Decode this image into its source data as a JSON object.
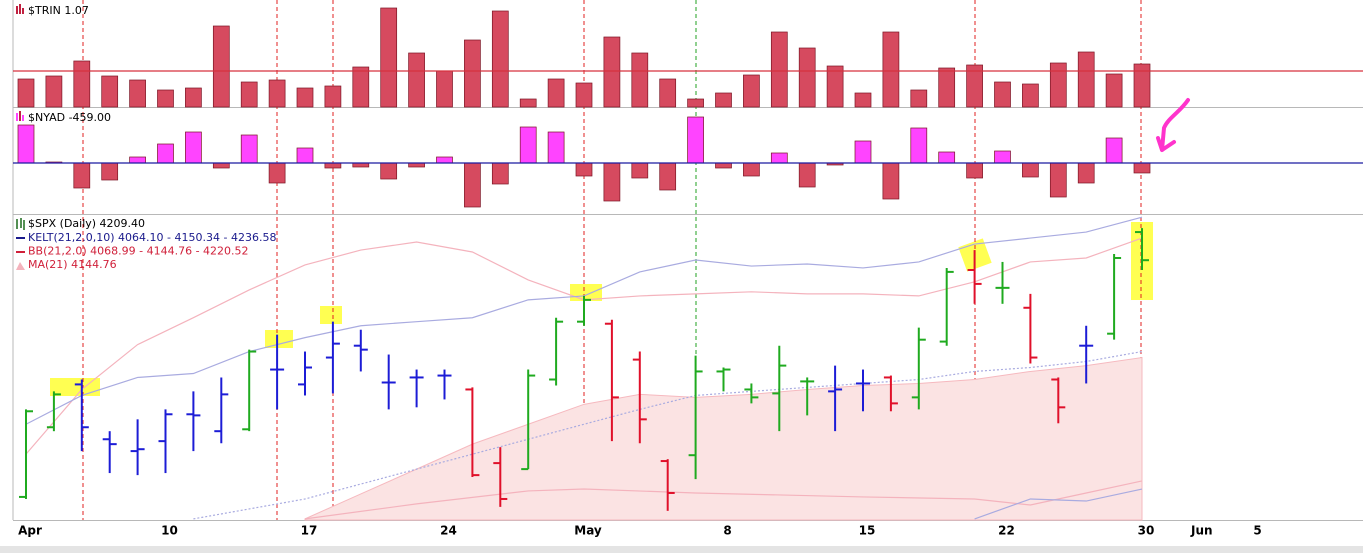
{
  "chart_data": [
    {
      "type": "bar",
      "title": "$TRIN 1.07",
      "color": "#d64a5f",
      "edge": "#7a1424",
      "values": [
        0.92,
        0.95,
        1.1,
        0.95,
        0.91,
        0.81,
        0.83,
        1.45,
        0.89,
        0.91,
        0.83,
        0.85,
        1.04,
        1.63,
        1.18,
        1.0,
        1.31,
        1.6,
        0.72,
        0.92,
        0.88,
        1.34,
        1.18,
        0.92,
        0.72,
        0.78,
        0.96,
        1.39,
        1.23,
        1.05,
        0.78,
        1.39,
        0.81,
        1.03,
        1.06,
        0.89,
        0.87,
        1.08,
        1.19,
        0.97,
        1.07
      ],
      "ylim": [
        0.64,
        1.71
      ],
      "ref_line": {
        "value": 1.0,
        "color": "#d6303f"
      }
    },
    {
      "type": "bar",
      "title": "$NYAD -459.00",
      "color_up": "#ff44ff",
      "color_down": "#d64a5f",
      "edge": "#7a1424",
      "values": [
        1748,
        46,
        -1150,
        -782,
        276,
        874,
        1426,
        -230,
        1288,
        -920,
        690,
        -230,
        -184,
        -736,
        -184,
        276,
        -2024,
        -966,
        1656,
        1426,
        -598,
        -1748,
        -690,
        -1242,
        2116,
        -230,
        -598,
        460,
        -1104,
        -92,
        1012,
        -1656,
        1610,
        506,
        -690,
        552,
        -644,
        -1564,
        -920,
        1150,
        -459
      ],
      "ylim": [
        -2300,
        2530
      ],
      "ref_line": {
        "value": 0,
        "color": "#1a1aa0"
      }
    },
    {
      "type": "ohlc",
      "title": "$SPX (Daily) 4209.40",
      "legend": [
        {
          "text": "KELT(21,2.0,10) 4064.10 - 4150.34 - 4236.58",
          "color": "#1a1a8c"
        },
        {
          "text": "BB(21,2.0) 4068.99 - 4144.76 - 4220.52",
          "color": "#d0203a"
        },
        {
          "text": "MA(21) 4144.76",
          "color": "#d0203a"
        }
      ],
      "categories": [
        "Apr",
        null,
        null,
        null,
        null,
        "10",
        null,
        null,
        null,
        null,
        "17",
        null,
        null,
        null,
        null,
        "24",
        null,
        null,
        null,
        null,
        "May",
        null,
        null,
        null,
        null,
        "8",
        null,
        null,
        null,
        null,
        "15",
        null,
        null,
        null,
        null,
        "22",
        null,
        null,
        null,
        null,
        "30",
        null,
        "Jun",
        null,
        "5"
      ],
      "open": [
        4059.6,
        4103.7,
        4130.8,
        4096.1,
        4088.6,
        4094.9,
        4111.9,
        4101.2,
        4102.4,
        4140.2,
        4130.8,
        4147.8,
        4155.3,
        4132.0,
        4135.2,
        4136.4,
        4127.6,
        4081.0,
        4077.2,
        4133.9,
        4170.5,
        4169.2,
        4146.5,
        4082.3,
        4086.0,
        4139.0,
        4127.6,
        4125.1,
        4132.7,
        4126.4,
        4131.4,
        4135.2,
        4122.6,
        4157.9,
        4203.2,
        4191.9,
        4179.3,
        4133.9,
        4155.3,
        4162.9,
        4227.2,
        null,
        null,
        null,
        null
      ],
      "high": [
        4115.0,
        4126.4,
        4133.9,
        4101.2,
        4108.7,
        4115.0,
        4126.4,
        4135.2,
        4152.8,
        4162.3,
        4151.6,
        4170.5,
        4165.4,
        4149.7,
        4140.2,
        4140.2,
        4128.9,
        4091.1,
        4140.2,
        4173.0,
        4186.8,
        4171.7,
        4151.6,
        4083.5,
        4149.0,
        4141.5,
        4131.4,
        4155.3,
        4135.2,
        4142.7,
        4140.2,
        4136.4,
        4166.7,
        4204.5,
        4215.8,
        4208.3,
        4188.1,
        4135.2,
        4167.9,
        4213.3,
        4229.7,
        null,
        null,
        null,
        null
      ],
      "low": [
        4058.3,
        4101.2,
        4088.6,
        4074.7,
        4073.4,
        4074.7,
        4088.6,
        4093.6,
        4101.2,
        4115.0,
        4123.8,
        4125.1,
        4139.0,
        4115.0,
        4116.3,
        4121.3,
        4072.2,
        4053.3,
        4077.2,
        4130.1,
        4167.9,
        4094.9,
        4093.6,
        4050.8,
        4070.9,
        4126.4,
        4118.8,
        4101.2,
        4111.2,
        4101.2,
        4113.8,
        4113.8,
        4115.0,
        4155.3,
        4181.8,
        4181.8,
        4144.0,
        4106.2,
        4131.4,
        4159.1,
        4203.2,
        null,
        null,
        null,
        null
      ],
      "close": [
        4113.8,
        4124.5,
        4103.7,
        4093.0,
        4089.8,
        4111.9,
        4111.2,
        4124.5,
        4151.6,
        4140.2,
        4141.5,
        4156.6,
        4152.8,
        4132.0,
        4135.2,
        4136.4,
        4073.4,
        4058.3,
        4136.4,
        4170.5,
        4184.3,
        4122.6,
        4108.7,
        4062.1,
        4139.0,
        4140.2,
        4122.6,
        4142.7,
        4132.7,
        4127.6,
        4131.4,
        4118.8,
        4159.1,
        4202.0,
        4194.4,
        4191.9,
        4147.8,
        4116.3,
        4155.3,
        4210.8,
        4209.4,
        null,
        null,
        null,
        null
      ],
      "colors": [
        "#1faa1f",
        "#1faa1f",
        "#1c1cd6",
        "#1c1cd6",
        "#1c1cd6",
        "#1c1cd6",
        "#1c1cd6",
        "#1c1cd6",
        "#1faa1f",
        "#1c1cd6",
        "#1c1cd6",
        "#1c1cd6",
        "#1c1cd6",
        "#1c1cd6",
        "#1c1cd6",
        "#1c1cd6",
        "#e0102a",
        "#e0102a",
        "#1faa1f",
        "#1faa1f",
        "#1faa1f",
        "#e0102a",
        "#e0102a",
        "#e0102a",
        "#1faa1f",
        "#1faa1f",
        "#1faa1f",
        "#1faa1f",
        "#1faa1f",
        "#1c1cd6",
        "#1c1cd6",
        "#e0102a",
        "#1faa1f",
        "#1faa1f",
        "#e0102a",
        "#1faa1f",
        "#e0102a",
        "#e0102a",
        "#1c1cd6",
        "#1faa1f",
        "#1faa1f",
        null,
        null,
        null,
        null
      ],
      "ylim": [
        4045,
        4238
      ],
      "overlays": [
        {
          "style": "area",
          "color": "#f6b9bf",
          "fill": "#fbe3e3",
          "x": [
            10,
            12,
            14,
            16,
            18,
            20,
            22,
            24,
            26,
            28,
            30,
            32,
            34,
            36,
            38,
            40
          ],
          "values": [
            4045.7,
            4061.5,
            4077.2,
            4093.0,
            4105.6,
            4118.2,
            4124.5,
            4122.6,
            4124.5,
            4127.6,
            4130.1,
            4131.4,
            4133.9,
            4139.0,
            4142.7,
            4147.8
          ]
        },
        {
          "style": "line",
          "color": "#f4b3bd",
          "x": [
            0,
            2,
            4,
            6,
            8,
            10,
            12,
            14,
            16,
            18,
            20,
            22,
            24,
            26,
            28,
            30,
            32,
            34,
            36,
            38,
            40
          ],
          "values": [
            4086.7,
            4127.6,
            4156.0,
            4173.0,
            4190.6,
            4206.4,
            4215.8,
            4220.9,
            4214.6,
            4196.9,
            4184.3,
            4186.8,
            4188.1,
            4189.4,
            4188.1,
            4188.1,
            4186.8,
            4195.7,
            4208.3,
            4210.8,
            4223.4
          ]
        },
        {
          "style": "line",
          "color": "#f4b3bd",
          "x": [
            10,
            14,
            18,
            20,
            24,
            30,
            34,
            36,
            38,
            40
          ],
          "values": [
            4045.7,
            4055.2,
            4063.4,
            4064.6,
            4062.1,
            4059.6,
            4058.3,
            4054.5,
            4062.1,
            4069.7
          ]
        },
        {
          "style": "line",
          "color": "#a9abe0",
          "x": [
            0,
            2,
            4,
            6,
            8,
            10,
            12,
            14,
            16,
            18,
            20,
            22,
            24,
            26,
            28,
            30,
            32,
            34,
            36,
            38,
            40
          ],
          "values": [
            4105.6,
            4123.8,
            4135.2,
            4137.7,
            4151.6,
            4160.4,
            4167.9,
            4170.5,
            4173.0,
            4184.3,
            4186.8,
            4202.0,
            4209.5,
            4205.7,
            4207.0,
            4204.5,
            4208.3,
            4219.6,
            4223.4,
            4227.2,
            4236.6
          ]
        },
        {
          "style": "dotted",
          "color": "#a9abe0",
          "x": [
            6,
            10,
            14,
            18,
            20,
            22,
            24,
            26,
            28,
            30,
            32,
            34,
            36,
            38,
            40
          ],
          "values": [
            4045.7,
            4058.3,
            4077.2,
            4096.1,
            4105.6,
            4115.0,
            4123.8,
            4126.4,
            4128.9,
            4131.4,
            4133.9,
            4139.0,
            4141.5,
            4145.3,
            4151.6
          ]
        },
        {
          "style": "line",
          "color": "#a9abe0",
          "x": [
            34,
            36,
            38,
            40
          ],
          "values": [
            4045.7,
            4058.3,
            4057.0,
            4064.6
          ]
        }
      ]
    }
  ]
}
